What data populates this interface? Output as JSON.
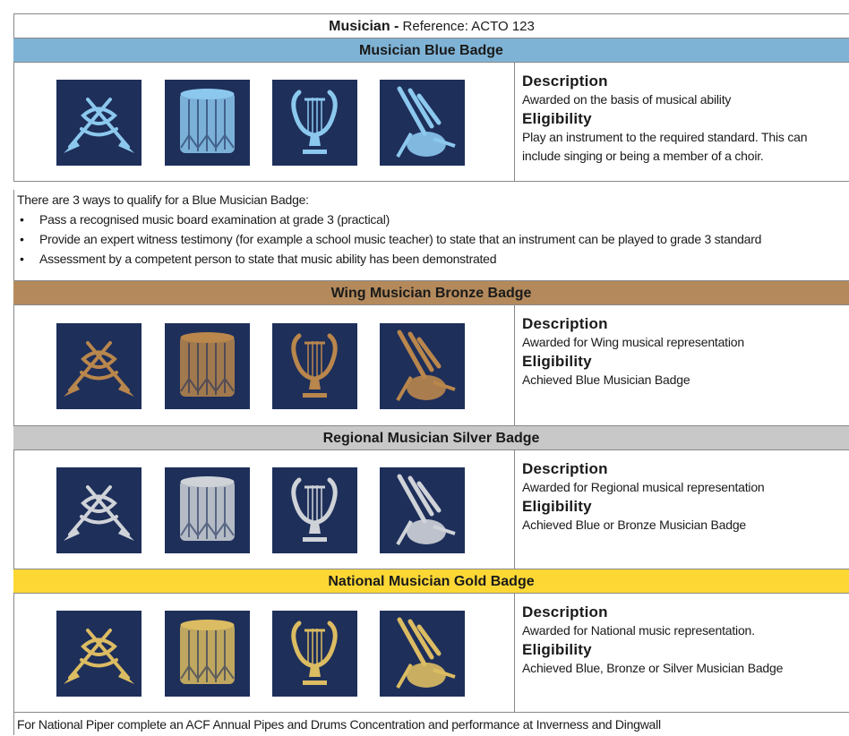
{
  "header": {
    "title": "Musician -",
    "reference": "Reference: ACTO 123"
  },
  "sections": [
    {
      "title": "Musician Blue Badge",
      "description_label": "Description",
      "description": "Awarded on the basis of musical ability",
      "eligibility_label": "Eligibility",
      "eligibility": "Play an instrument to the required standard. This can include singing or being a member of a choir."
    },
    {
      "title": "Wing Musician Bronze Badge",
      "description_label": "Description",
      "description": "Awarded for Wing musical representation",
      "eligibility_label": "Eligibility",
      "eligibility": "Achieved Blue Musician Badge"
    },
    {
      "title": "Regional Musician Silver Badge",
      "description_label": "Description",
      "description": "Awarded for Regional musical representation",
      "eligibility_label": "Eligibility",
      "eligibility": "Achieved Blue or Bronze Musician Badge"
    },
    {
      "title": "National Musician Gold Badge",
      "description_label": "Description",
      "description": "Awarded for National music representation.",
      "eligibility_label": "Eligibility",
      "eligibility": "Achieved Blue, Bronze or Silver Musician Badge"
    }
  ],
  "qualify": {
    "intro": "There are 3 ways to qualify for a Blue Musician Badge:",
    "items": [
      "Pass a recognised music board examination at grade 3 (practical)",
      "Provide an expert witness testimony (for example a school music teacher) to state that an instrument can be played to grade 3 standard",
      "Assessment by a competent person to state that music ability has been demonstrated"
    ]
  },
  "footer": "For National Piper complete an ACF Annual Pipes and Drums Concentration and performance at Inverness and Dingwall"
}
